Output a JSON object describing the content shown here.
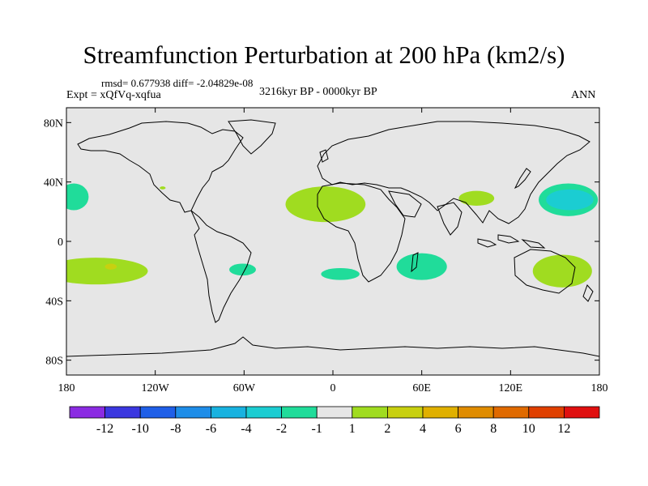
{
  "header": {
    "title": "Streamfunction Perturbation at 200 hPa (km2/s)",
    "stats": "rmsd= 0.677938 diff= -2.04829e-08",
    "experiment": "Expt = xQfVq-xqfua",
    "period": "3216kyr BP - 0000kyr BP",
    "season": "ANN"
  },
  "chart_data": {
    "type": "heatmap",
    "title": "Streamfunction Perturbation at 200 hPa (km2/s)",
    "projection": "cylindrical-equidistant",
    "x_axis": {
      "range": [
        -180,
        180
      ],
      "ticks": [
        -180,
        -120,
        -60,
        0,
        60,
        120,
        180
      ],
      "tick_labels": [
        "180",
        "120W",
        "60W",
        "0",
        "60E",
        "120E",
        "180"
      ]
    },
    "y_axis": {
      "range": [
        -90,
        90
      ],
      "ticks": [
        80,
        40,
        0,
        -40,
        -80
      ],
      "tick_labels": [
        "80N",
        "40N",
        "0",
        "40S",
        "80S"
      ]
    },
    "background_color": "#E6E6E6",
    "colorbar": {
      "labels": [
        "-12",
        "-10",
        "-8",
        "-6",
        "-4",
        "-2",
        "-1",
        "1",
        "2",
        "4",
        "6",
        "8",
        "10",
        "12"
      ],
      "colors": [
        "#8B2BE2",
        "#3B37E0",
        "#1F5FE8",
        "#1E8DE8",
        "#18B2E0",
        "#1BCDD2",
        "#20DC9A",
        "#E6E6E6",
        "#A0DC20",
        "#C8D010",
        "#E0B000",
        "#E08C00",
        "#E06A00",
        "#E04000",
        "#E01010"
      ]
    },
    "anomaly_regions": [
      {
        "name": "north-pacific-east",
        "lon": -175,
        "lat": 30,
        "rx": 10,
        "ry": 9,
        "color": "#20DC9A"
      },
      {
        "name": "south-pacific-east",
        "lon": -160,
        "lat": -20,
        "rx": 35,
        "ry": 9,
        "color": "#A0DC20"
      },
      {
        "name": "south-pacific-core",
        "lon": -150,
        "lat": -17,
        "rx": 4,
        "ry": 2,
        "color": "#C8D010"
      },
      {
        "name": "tropical-atlantic-north",
        "lon": -5,
        "lat": 25,
        "rx": 27,
        "ry": 12,
        "color": "#A0DC20"
      },
      {
        "name": "middle-east",
        "lon": 97,
        "lat": 29,
        "rx": 12,
        "ry": 5,
        "color": "#A0DC20"
      },
      {
        "name": "small-dot-north-atlantic",
        "lon": -115,
        "lat": 36,
        "rx": 2,
        "ry": 1,
        "color": "#A0DC20"
      },
      {
        "name": "north-pacific-west-outer",
        "lon": 159,
        "lat": 28,
        "rx": 20,
        "ry": 11,
        "color": "#20DC9A"
      },
      {
        "name": "north-pacific-west-inner",
        "lon": 160,
        "lat": 28,
        "rx": 16,
        "ry": 7,
        "color": "#1BCDD2"
      },
      {
        "name": "south-atlantic",
        "lon": -61,
        "lat": -19,
        "rx": 9,
        "ry": 4,
        "color": "#20DC9A"
      },
      {
        "name": "south-atlantic-east",
        "lon": 5,
        "lat": -22,
        "rx": 13,
        "ry": 4,
        "color": "#20DC9A"
      },
      {
        "name": "indian-ocean",
        "lon": 60,
        "lat": -17,
        "rx": 17,
        "ry": 9,
        "color": "#20DC9A"
      },
      {
        "name": "australia-east",
        "lon": 155,
        "lat": -20,
        "rx": 20,
        "ry": 11,
        "color": "#A0DC20"
      }
    ]
  }
}
